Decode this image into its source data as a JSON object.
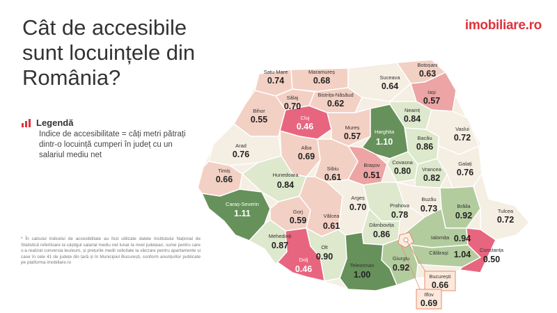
{
  "header": {
    "title": "Cât de accesibile sunt locuințele din România?",
    "brand": "imobiliare.ro"
  },
  "legend": {
    "title": "Legendă",
    "text": "Indice de accesibilitate = câți metri pătrați dintr-o locuință cumperi în județ cu un salariul mediu net"
  },
  "footnote": "* În calculul indicelui de accesibilitate au fost utilizate datele Institutului Național de Statistică referitoare la câștigul salarial mediu net lunar la nivel județean, sume pentru care s-a realizat conversia leu/euro, și prețurile medii solicitate la vânzare pentru apartamente și case în cele 41 de județe din țară și în Municipiul București, conform anunțurilor publicate pe platforma imobiliare.ro",
  "colors": {
    "dark_green": "#66915a",
    "medium_green": "#b3cc9e",
    "light_green": "#dde8cc",
    "neutral": "#f5eee3",
    "light_pink": "#f3d0c4",
    "medium_pink": "#eca4a4",
    "hot_pink": "#e8657f",
    "county_border": "#ffffff"
  },
  "counties": [
    {
      "name": "Satu Mare",
      "value": "0.74"
    },
    {
      "name": "Maramureș",
      "value": "0.68"
    },
    {
      "name": "Suceava",
      "value": "0.64"
    },
    {
      "name": "Botoșani",
      "value": "0.63"
    },
    {
      "name": "Sălaj",
      "value": "0.70"
    },
    {
      "name": "Bistrița-Năsăud",
      "value": "0.62"
    },
    {
      "name": "Iași",
      "value": "0.57"
    },
    {
      "name": "Bihor",
      "value": "0.55"
    },
    {
      "name": "Cluj",
      "value": "0.46"
    },
    {
      "name": "Mureș",
      "value": "0.57"
    },
    {
      "name": "Harghita",
      "value": "1.10"
    },
    {
      "name": "Neamț",
      "value": "0.84"
    },
    {
      "name": "Bacău",
      "value": "0.86"
    },
    {
      "name": "Vaslui",
      "value": "0.72"
    },
    {
      "name": "Arad",
      "value": "0.76"
    },
    {
      "name": "Alba",
      "value": "0.69"
    },
    {
      "name": "Sibiu",
      "value": "0.61"
    },
    {
      "name": "Brașov",
      "value": "0.51"
    },
    {
      "name": "Covasna",
      "value": "0.80"
    },
    {
      "name": "Vrancea",
      "value": "0.82"
    },
    {
      "name": "Galați",
      "value": "0.76"
    },
    {
      "name": "Timiș",
      "value": "0.66"
    },
    {
      "name": "Hunedoara",
      "value": "0.84"
    },
    {
      "name": "Caraș-Severin",
      "value": "1.11"
    },
    {
      "name": "Gorj",
      "value": "0.59"
    },
    {
      "name": "Vâlcea",
      "value": "0.61"
    },
    {
      "name": "Argeș",
      "value": "0.70"
    },
    {
      "name": "Prahova",
      "value": "0.78"
    },
    {
      "name": "Buzău",
      "value": "0.73"
    },
    {
      "name": "Brăila",
      "value": "0.92"
    },
    {
      "name": "Tulcea",
      "value": "0.72"
    },
    {
      "name": "Dâmbovița",
      "value": "0.86"
    },
    {
      "name": "Mehedinți",
      "value": "0.87"
    },
    {
      "name": "Ialomița",
      "value": "0.94"
    },
    {
      "name": "Călărași",
      "value": "1.04"
    },
    {
      "name": "Constanța",
      "value": "0.50"
    },
    {
      "name": "Olt",
      "value": "0.90"
    },
    {
      "name": "Giurgiu",
      "value": "0.92"
    },
    {
      "name": "Dolj",
      "value": "0.46"
    },
    {
      "name": "Teleorman",
      "value": "1.00"
    },
    {
      "name": "București",
      "value": "0.66"
    },
    {
      "name": "Ilfov",
      "value": "0.69"
    }
  ]
}
